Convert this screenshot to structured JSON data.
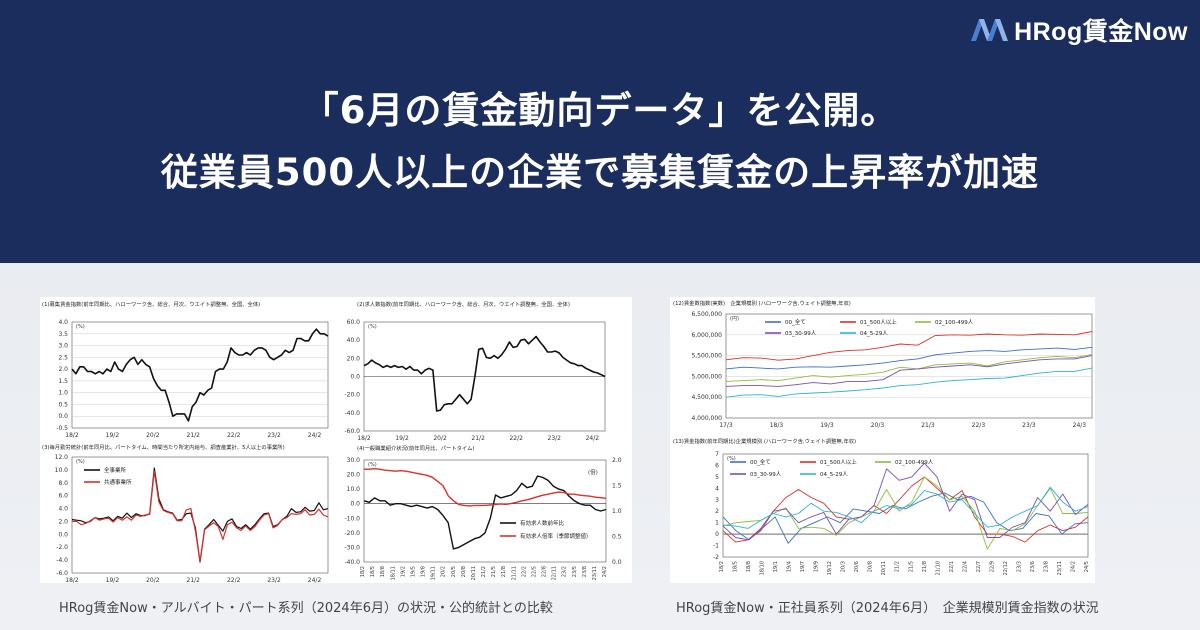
{
  "logo": {
    "text": "HRog賃金Now"
  },
  "headline": {
    "line1": "「6月の賃金動向データ」を公開。",
    "line2": "従業員500人以上の企業で募集賃金の上昇率が加速"
  },
  "captions": {
    "left": "HRog賃金Now・アルバイト・パート系列（2024年6月）の状況・公的統計との比較",
    "right": "HRog賃金Now・正社員系列（2024年6月）　企業規模別賃金指数の状況"
  },
  "colors": {
    "hero_bg": "#1b2d5c",
    "black": "#111111",
    "red": "#d9312b",
    "blue": "#3d6fc4",
    "green": "#8dbf3a",
    "purple": "#7b4fb0",
    "cyan": "#2fb3d4"
  },
  "chart_data": [
    {
      "type": "line",
      "title": "(1)募集賃金指数(前年同期比、ハローワーク含、総合、月次、ウエイト調整無、全国、全体)",
      "unit": "(%)",
      "ylim": [
        -0.5,
        4.0
      ],
      "yticks": [
        "4.0",
        "3.5",
        "3.0",
        "2.5",
        "2.0",
        "1.5",
        "1.0",
        "0.5",
        "0.0",
        "-0.5"
      ],
      "xticks": [
        "18/2",
        "19/2",
        "20/2",
        "21/2",
        "22/2",
        "23/2",
        "24/2"
      ],
      "grid": true,
      "series": [
        {
          "color": "#111111",
          "values": [
            2.0,
            1.8,
            2.1,
            2.1,
            1.9,
            1.9,
            1.8,
            1.9,
            1.8,
            2.0,
            1.9,
            2.3,
            2.0,
            1.9,
            2.2,
            2.4,
            2.5,
            2.2,
            2.4,
            2.2,
            2.1,
            1.6,
            1.3,
            1.1,
            1.1,
            0.6,
            0.0,
            0.1,
            0.1,
            0.1,
            -0.2,
            0.4,
            0.6,
            1.0,
            0.9,
            1.1,
            1.2,
            1.9,
            2.0,
            2.0,
            2.3,
            2.9,
            2.7,
            2.6,
            2.6,
            2.7,
            2.6,
            2.8,
            2.9,
            2.9,
            2.8,
            2.5,
            2.4,
            2.5,
            2.6,
            2.8,
            2.7,
            2.8,
            3.3,
            3.3,
            3.2,
            3.2,
            3.5,
            3.7,
            3.5,
            3.5,
            3.4
          ]
        }
      ]
    },
    {
      "type": "line",
      "title": "(2)求人数指数(前年同期比、ハローワーク含、総合、月次、ウエイト調整無、全国、全体)",
      "unit": "(%)",
      "ylim": [
        -60,
        60
      ],
      "yticks": [
        "60.0",
        "40.0",
        "20.0",
        "0.0",
        "-20.0",
        "-40.0",
        "-60.0"
      ],
      "xticks": [
        "18/2",
        "19/2",
        "20/2",
        "21/2",
        "22/2",
        "23/2",
        "24/2"
      ],
      "grid": false,
      "series": [
        {
          "color": "#111111",
          "values": [
            12,
            14,
            18,
            15,
            13,
            10,
            12,
            10,
            12,
            10,
            11,
            8,
            11,
            7,
            7,
            3,
            7,
            9,
            7,
            -38,
            -37,
            -31,
            -30,
            -30,
            -25,
            -20,
            -25,
            -30,
            -25,
            0,
            30,
            31,
            21,
            20,
            23,
            20,
            24,
            30,
            38,
            32,
            33,
            40,
            41,
            36,
            40,
            44,
            38,
            33,
            27,
            27,
            28,
            26,
            21,
            18,
            15,
            14,
            12,
            12,
            9,
            7,
            5,
            4,
            2,
            0
          ]
        }
      ]
    },
    {
      "type": "line",
      "title": "(3)毎月勤労統計(前年同月比、パートタイム、時間当たり所定内給与、調査産業計、5人以上の事業所)",
      "unit": "(%)",
      "ylim": [
        -6,
        12
      ],
      "yticks": [
        "12.0",
        "10.0",
        "8.0",
        "6.0",
        "4.0",
        "2.0",
        "0.0",
        "-2.0",
        "-4.0",
        "-6.0"
      ],
      "xticks": [
        "18/2",
        "19/2",
        "20/2",
        "21/2",
        "22/2",
        "23/2",
        "24/2"
      ],
      "grid": false,
      "legend": "top-left",
      "series": [
        {
          "name": "全事業所",
          "color": "#111111",
          "values": [
            2.3,
            2.2,
            2.1,
            1.8,
            2.0,
            2.6,
            2.4,
            2.5,
            2.7,
            2.1,
            2.8,
            2.5,
            3.3,
            2.6,
            3.2,
            2.9,
            2.9,
            3.2,
            10.3,
            5.5,
            3.8,
            3.5,
            3.3,
            2.2,
            2.3,
            3.2,
            3.3,
            1.0,
            -4.3,
            0.8,
            1.5,
            2.3,
            1.4,
            0.5,
            2.0,
            2.4,
            1.2,
            0.9,
            1.5,
            0.8,
            1.5,
            2.4,
            3.2,
            3.3,
            1.2,
            1.5,
            2.3,
            2.8,
            4.0,
            3.4,
            3.5,
            4.2,
            3.6,
            3.7,
            4.9,
            3.8,
            4.0
          ]
        },
        {
          "name": "共通事業所",
          "color": "#d9312b",
          "values": [
            2.0,
            2.0,
            1.5,
            1.7,
            2.1,
            2.6,
            2.2,
            2.4,
            2.5,
            1.9,
            2.6,
            2.2,
            2.7,
            2.2,
            3.0,
            2.8,
            3.0,
            3.1,
            9.8,
            5.0,
            3.7,
            3.4,
            3.2,
            2.1,
            2.1,
            3.8,
            4.0,
            0.5,
            -4.2,
            0.7,
            1.3,
            1.8,
            1.2,
            -0.8,
            1.5,
            1.9,
            1.0,
            0.6,
            1.3,
            0.6,
            1.2,
            2.2,
            3.0,
            3.2,
            1.0,
            1.4,
            2.3,
            2.6,
            3.2,
            3.1,
            3.2,
            3.8,
            3.0,
            3.1,
            3.9,
            3.0,
            2.7
          ]
        }
      ]
    },
    {
      "type": "line",
      "title": "(4)一般職業紹介状況(前年同月比、パートタイム)",
      "unit": "(%)",
      "unit_right": "(倍)",
      "ylim": [
        -40,
        30
      ],
      "ylim_right": [
        0.0,
        2.0
      ],
      "yticks": [
        "30.0",
        "20.0",
        "10.0",
        "0.0",
        "-10.0",
        "-20.0",
        "-30.0",
        "-40.0"
      ],
      "yticks_right": [
        "2.0",
        "1.5",
        "1.0",
        "0.5",
        "0.0"
      ],
      "xticks": [
        "18/2",
        "18/5",
        "18/8",
        "18/11",
        "19/2",
        "19/5",
        "19/8",
        "19/11",
        "20/2",
        "20/5",
        "20/8",
        "20/11",
        "21/2",
        "21/5",
        "21/8",
        "21/11",
        "22/2",
        "22/5",
        "22/8",
        "22/11",
        "23/2",
        "23/5",
        "23/8",
        "23/11",
        "24/2"
      ],
      "legend": "bottom-right",
      "series": [
        {
          "name": "有効求人数前年比",
          "axis": "left",
          "color": "#111111",
          "values": [
            2,
            1,
            4,
            2,
            2,
            -1,
            0,
            0,
            -1,
            -2,
            -1,
            -2,
            -3,
            -2,
            -4,
            -8,
            -13,
            -31,
            -30,
            -28,
            -26,
            -24,
            -23,
            -20,
            -10,
            6,
            4,
            5,
            6,
            9,
            14,
            11,
            12,
            19,
            18,
            16,
            12,
            10,
            9,
            5,
            2,
            0,
            -1,
            -1,
            -4,
            -5,
            -4
          ]
        },
        {
          "name": "有効求人倍率（季節調整値）",
          "axis": "right",
          "color": "#d9312b",
          "values": [
            1.82,
            1.82,
            1.83,
            1.82,
            1.8,
            1.79,
            1.78,
            1.79,
            1.78,
            1.76,
            1.74,
            1.72,
            1.7,
            1.66,
            1.58,
            1.5,
            1.3,
            1.2,
            1.13,
            1.11,
            1.1,
            1.11,
            1.11,
            1.11,
            1.12,
            1.13,
            1.14,
            1.13,
            1.15,
            1.17,
            1.2,
            1.22,
            1.25,
            1.28,
            1.31,
            1.33,
            1.35,
            1.37,
            1.36,
            1.33,
            1.33,
            1.31,
            1.3,
            1.29,
            1.27,
            1.26,
            1.25
          ]
        }
      ]
    },
    {
      "type": "line",
      "title": "(12)賃金数指数(実数)　企業規模別 (ハローワーク含,ウェイト調整無,年収)",
      "unit": "(円)",
      "ylim": [
        4000000,
        6500000
      ],
      "yticks": [
        "6,500,000",
        "6,000,000",
        "5,500,000",
        "5,000,000",
        "4,500,000",
        "4,000,000"
      ],
      "xticks": [
        "17/3",
        "18/3",
        "19/3",
        "20/3",
        "21/3",
        "22/3",
        "23/3",
        "24/3"
      ],
      "grid": true,
      "legend": "top",
      "series": [
        {
          "name": "00_全て",
          "color": "#3d6fc4",
          "values": [
            5180000,
            5220000,
            5200000,
            5180000,
            5220000,
            5230000,
            5220000,
            5250000,
            5280000,
            5320000,
            5380000,
            5420000,
            5520000,
            5560000,
            5600000,
            5620000,
            5600000,
            5640000,
            5660000,
            5680000,
            5650000,
            5700000
          ]
        },
        {
          "name": "01_500人以上",
          "color": "#d9312b",
          "values": [
            5400000,
            5450000,
            5440000,
            5390000,
            5420000,
            5500000,
            5580000,
            5620000,
            5640000,
            5700000,
            5780000,
            5750000,
            5980000,
            6000000,
            5990000,
            6020000,
            6000000,
            5990000,
            6020000,
            6010000,
            6000000,
            6080000
          ]
        },
        {
          "name": "02_100-499人",
          "color": "#8dbf3a",
          "values": [
            4880000,
            4900000,
            4920000,
            4900000,
            4960000,
            5020000,
            4980000,
            5020000,
            5050000,
            5100000,
            5220000,
            5180000,
            5280000,
            5300000,
            5320000,
            5250000,
            5350000,
            5400000,
            5450000,
            5480000,
            5450000,
            5530000
          ]
        },
        {
          "name": "03_30-99人",
          "color": "#7b4fb0",
          "values": [
            4760000,
            4780000,
            4780000,
            4760000,
            4800000,
            4850000,
            4820000,
            4880000,
            4880000,
            4920000,
            5150000,
            5180000,
            5220000,
            5250000,
            5280000,
            5230000,
            5300000,
            5350000,
            5400000,
            5420000,
            5420000,
            5500000
          ]
        },
        {
          "name": "04_5-29人",
          "color": "#2fb3d4",
          "values": [
            4500000,
            4550000,
            4560000,
            4520000,
            4580000,
            4600000,
            4620000,
            4650000,
            4680000,
            4720000,
            4780000,
            4800000,
            4860000,
            4900000,
            4920000,
            4950000,
            4960000,
            5020000,
            5080000,
            5120000,
            5120000,
            5200000
          ]
        }
      ]
    },
    {
      "type": "line",
      "title": "(13)賃金指数(前年同期比)企業規模別 (ハローワーク含,ウェイト調整無,年収)",
      "unit": "(%)",
      "ylim": [
        -2,
        7
      ],
      "yticks": [
        "7",
        "6",
        "5",
        "4",
        "3",
        "2",
        "1",
        "0",
        "-1",
        "-2"
      ],
      "xticks": [
        "18/2",
        "18/5",
        "18/8",
        "18/10",
        "19/1",
        "19/4",
        "19/7",
        "19/9",
        "19/12",
        "20/3",
        "20/6",
        "20/8",
        "20/11",
        "21/2",
        "21/5",
        "21/8",
        "21/10",
        "22/1",
        "22/4",
        "22/7",
        "22/9",
        "22/12",
        "23/3",
        "23/6",
        "23/8",
        "23/11",
        "24/2",
        "24/5"
      ],
      "grid": false,
      "legend": "top",
      "series": [
        {
          "name": "00_全て",
          "color": "#3d6fc4",
          "values": [
            1.5,
            0.3,
            -0.5,
            0.5,
            1.5,
            -0.8,
            0.5,
            1.0,
            1.5,
            1.0,
            2.2,
            2.0,
            1.8,
            2.5,
            2.2,
            2.8,
            3.3,
            3.6,
            3.0,
            3.3,
            2.8,
            1.0,
            0.3,
            0.5,
            1.8,
            1.6,
            0.0,
            0.9,
            1.0
          ]
        },
        {
          "name": "01_500人以上",
          "color": "#d9312b",
          "values": [
            0.3,
            -0.7,
            -0.5,
            0.5,
            2.0,
            3.2,
            3.9,
            3.2,
            2.7,
            1.5,
            1.3,
            1.5,
            2.5,
            1.8,
            3.0,
            4.2,
            5.0,
            4.0,
            3.0,
            3.8,
            1.5,
            0.0,
            0.0,
            -0.2,
            -0.7,
            0.3,
            0.8,
            0.3,
            0.6,
            1.5
          ]
        },
        {
          "name": "02_100-499人",
          "color": "#8dbf3a",
          "values": [
            0.7,
            1.0,
            1.1,
            1.2,
            1.8,
            2.3,
            0.5,
            0.6,
            0.5,
            -0.1,
            1.0,
            1.5,
            2.0,
            3.9,
            2.0,
            2.8,
            5.0,
            4.2,
            3.0,
            3.3,
            2.0,
            -1.3,
            0.5,
            0.3,
            0.9,
            2.5,
            4.0,
            1.8,
            1.8,
            1.9
          ]
        },
        {
          "name": "03_30-99人",
          "color": "#7b4fb0",
          "values": [
            0.7,
            -0.3,
            -0.5,
            0.3,
            2.0,
            2.2,
            1.0,
            1.5,
            1.9,
            0.0,
            1.3,
            1.5,
            2.5,
            5.7,
            4.7,
            5.0,
            6.2,
            5.0,
            2.0,
            3.5,
            3.0,
            -0.3,
            -0.3,
            0.6,
            1.0,
            3.2,
            2.0,
            3.5,
            1.7,
            2.6
          ]
        },
        {
          "name": "04_5-29人",
          "color": "#2fb3d4",
          "values": [
            0.8,
            0.7,
            0.5,
            1.2,
            1.8,
            1.5,
            1.8,
            2.7,
            2.0,
            1.9,
            1.5,
            1.0,
            2.0,
            2.5,
            2.2,
            2.6,
            3.8,
            3.5,
            2.8,
            3.0,
            1.8,
            0.6,
            0.8,
            1.5,
            2.0,
            2.5,
            4.1,
            2.8,
            2.0,
            2.4
          ]
        }
      ]
    }
  ]
}
